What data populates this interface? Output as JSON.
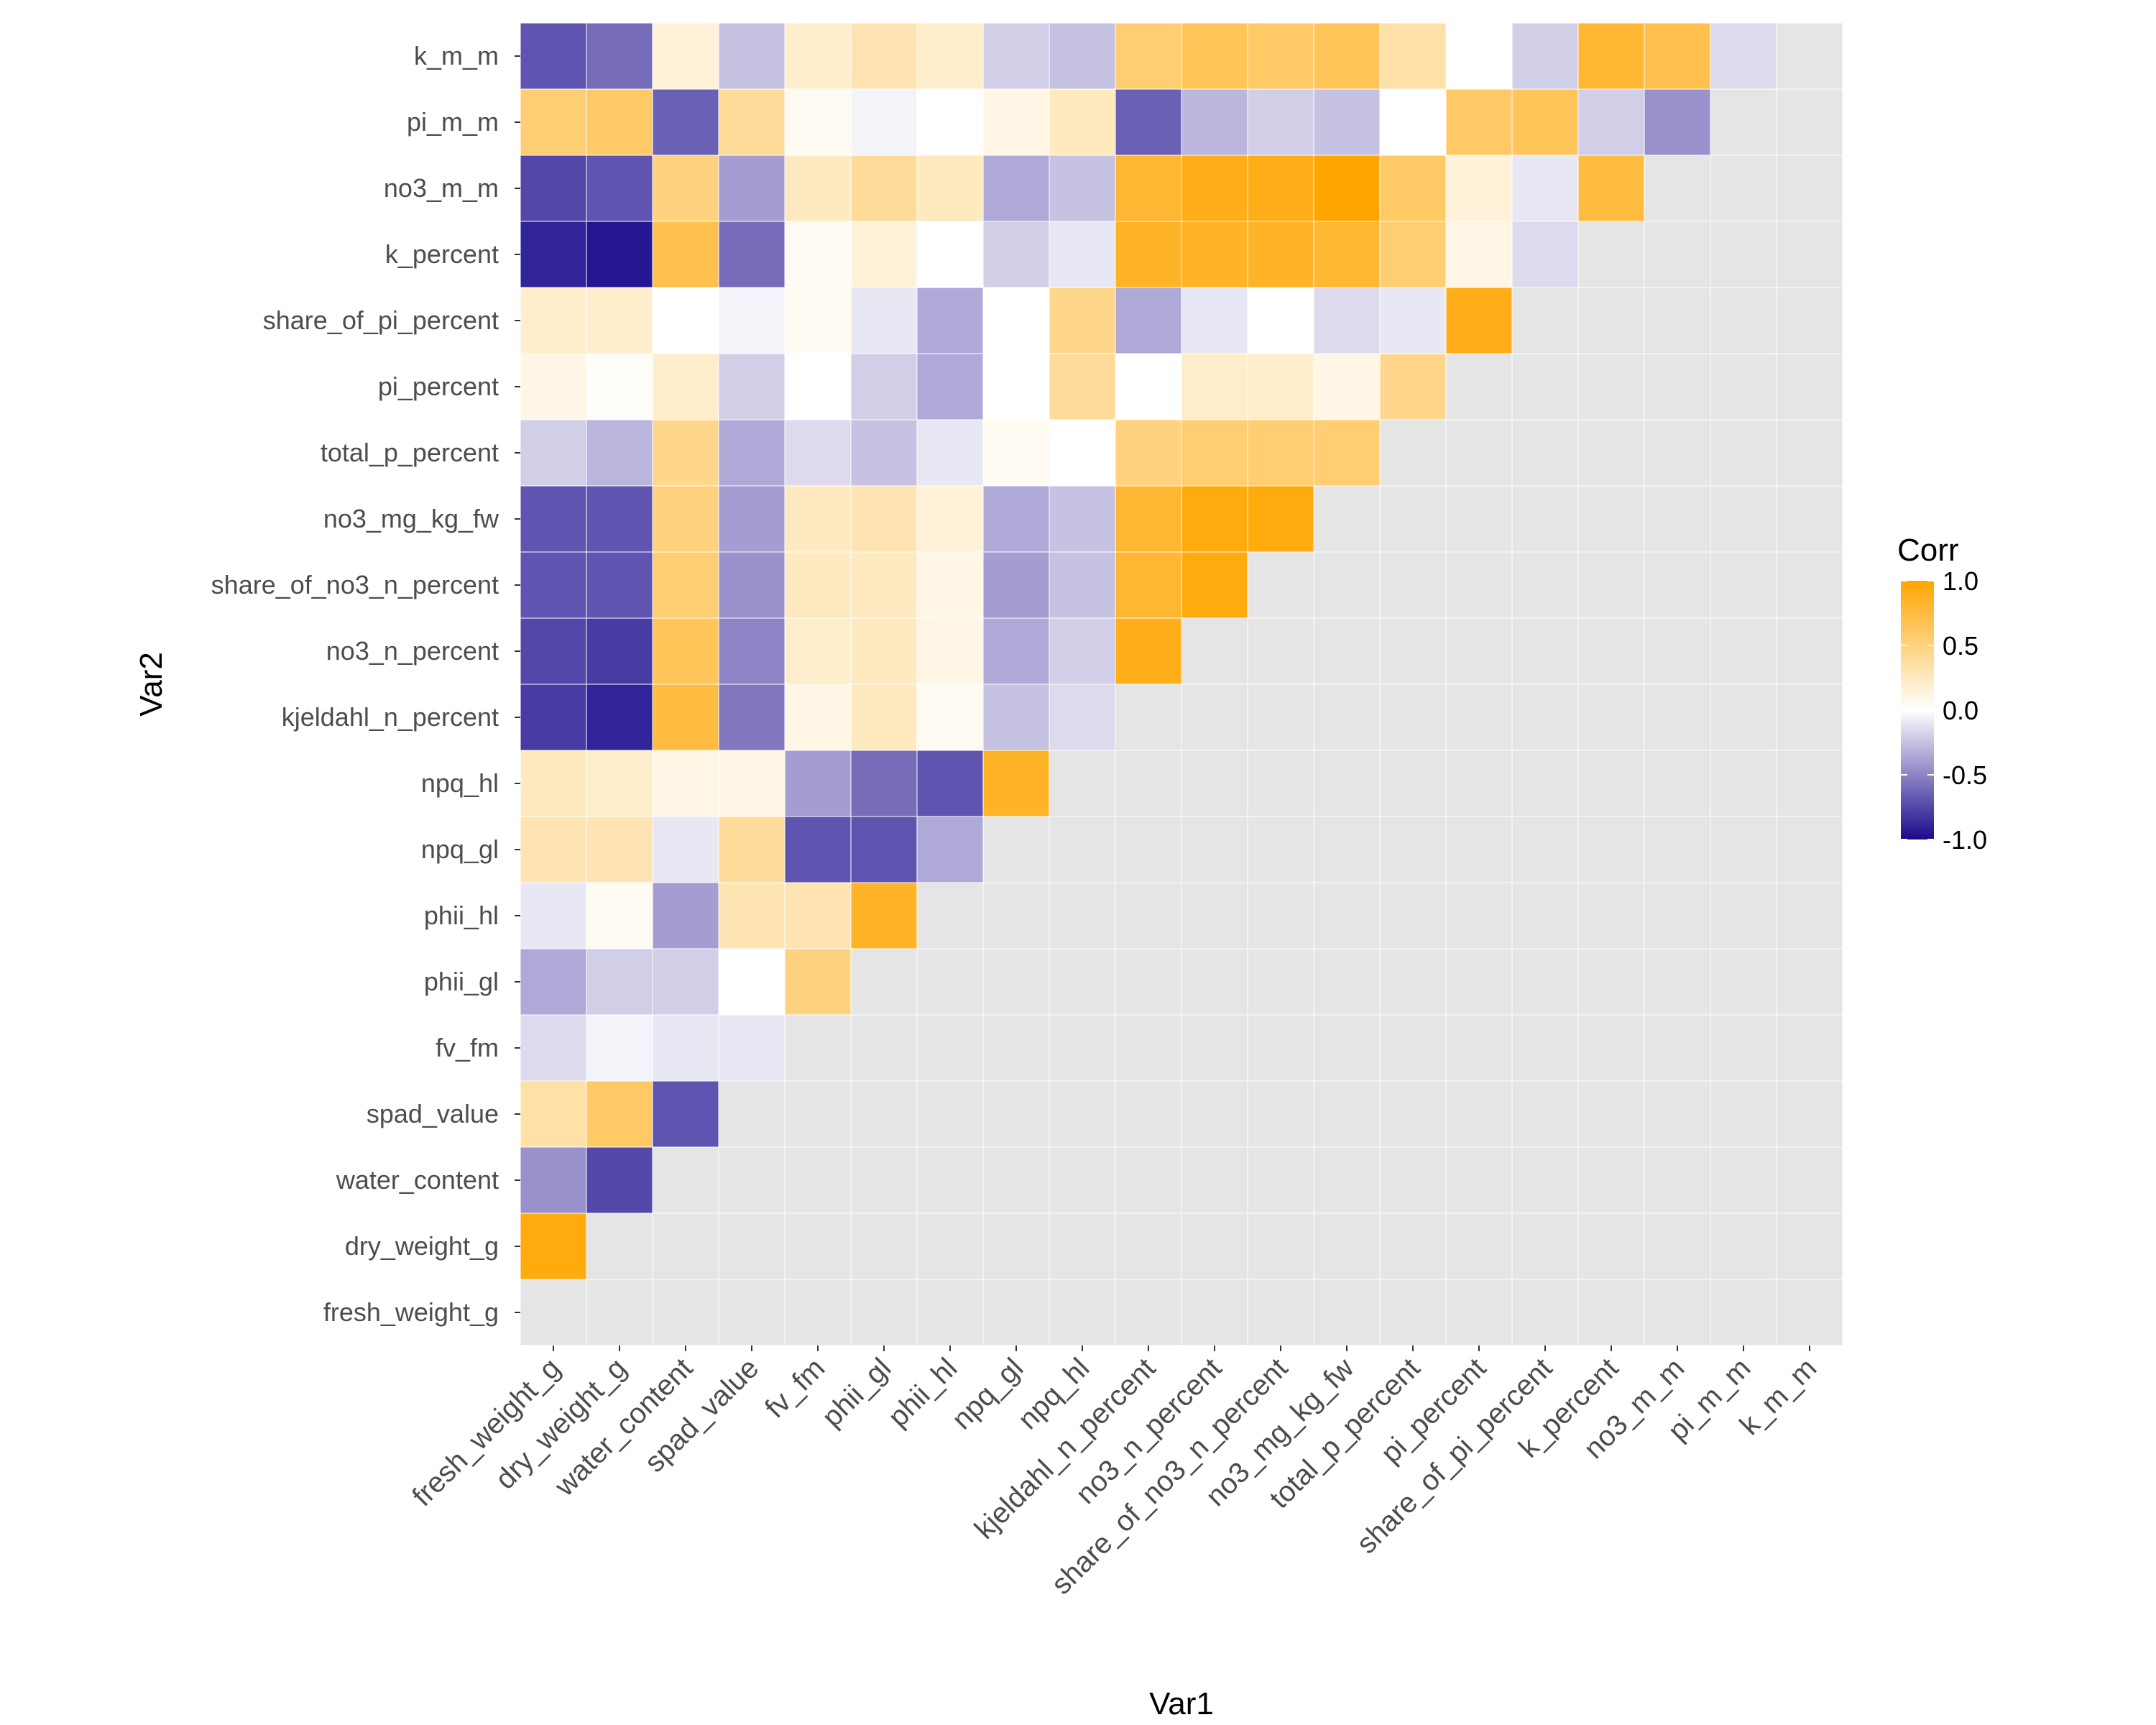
{
  "chart_data": {
    "type": "heatmap",
    "title": "",
    "xlabel": "Var1",
    "ylabel": "Var2",
    "variables": [
      "fresh_weight_g",
      "dry_weight_g",
      "water_content",
      "spad_value",
      "fv_fm",
      "phii_gl",
      "phii_hl",
      "npq_gl",
      "npq_hl",
      "kjeldahl_n_percent",
      "no3_n_percent",
      "share_of_no3_n_percent",
      "no3_mg_kg_fw",
      "total_p_percent",
      "pi_percent",
      "share_of_pi_percent",
      "k_percent",
      "no3_m_m",
      "pi_m_m",
      "k_m_m"
    ],
    "values": [
      [
        null,
        null,
        null,
        null,
        null,
        null,
        null,
        null,
        null,
        null,
        null,
        null,
        null,
        null,
        null,
        null,
        null,
        null,
        null,
        null
      ],
      [
        0.95,
        null,
        null,
        null,
        null,
        null,
        null,
        null,
        null,
        null,
        null,
        null,
        null,
        null,
        null,
        null,
        null,
        null,
        null,
        null
      ],
      [
        -0.45,
        -0.75,
        null,
        null,
        null,
        null,
        null,
        null,
        null,
        null,
        null,
        null,
        null,
        null,
        null,
        null,
        null,
        null,
        null,
        null
      ],
      [
        0.35,
        0.6,
        -0.7,
        null,
        null,
        null,
        null,
        null,
        null,
        null,
        null,
        null,
        null,
        null,
        null,
        null,
        null,
        null,
        null,
        null
      ],
      [
        -0.15,
        -0.05,
        -0.1,
        -0.1,
        null,
        null,
        null,
        null,
        null,
        null,
        null,
        null,
        null,
        null,
        null,
        null,
        null,
        null,
        null,
        null
      ],
      [
        -0.35,
        -0.2,
        -0.2,
        0.0,
        0.5,
        null,
        null,
        null,
        null,
        null,
        null,
        null,
        null,
        null,
        null,
        null,
        null,
        null,
        null,
        null
      ],
      [
        -0.1,
        0.05,
        -0.4,
        0.3,
        0.3,
        0.85,
        null,
        null,
        null,
        null,
        null,
        null,
        null,
        null,
        null,
        null,
        null,
        null,
        null,
        null
      ],
      [
        0.3,
        0.3,
        -0.1,
        0.4,
        -0.7,
        -0.7,
        -0.35,
        null,
        null,
        null,
        null,
        null,
        null,
        null,
        null,
        null,
        null,
        null,
        null,
        null
      ],
      [
        0.25,
        0.2,
        0.1,
        0.1,
        -0.4,
        -0.6,
        -0.7,
        0.85,
        null,
        null,
        null,
        null,
        null,
        null,
        null,
        null,
        null,
        null,
        null,
        null
      ],
      [
        -0.8,
        -0.9,
        0.75,
        -0.55,
        0.1,
        0.25,
        0.05,
        -0.25,
        -0.15,
        null,
        null,
        null,
        null,
        null,
        null,
        null,
        null,
        null,
        null,
        null
      ],
      [
        -0.75,
        -0.8,
        0.65,
        -0.5,
        0.2,
        0.25,
        0.1,
        -0.35,
        -0.2,
        0.9,
        null,
        null,
        null,
        null,
        null,
        null,
        null,
        null,
        null,
        null
      ],
      [
        -0.7,
        -0.7,
        0.55,
        -0.45,
        0.25,
        0.25,
        0.1,
        -0.4,
        -0.25,
        0.8,
        0.95,
        null,
        null,
        null,
        null,
        null,
        null,
        null,
        null,
        null
      ],
      [
        -0.7,
        -0.7,
        0.5,
        -0.4,
        0.25,
        0.3,
        0.15,
        -0.35,
        -0.25,
        0.8,
        0.95,
        0.95,
        null,
        null,
        null,
        null,
        null,
        null,
        null,
        null
      ],
      [
        -0.2,
        -0.3,
        0.45,
        -0.35,
        -0.15,
        -0.25,
        -0.1,
        0.05,
        0.0,
        0.5,
        0.55,
        0.55,
        0.55,
        null,
        null,
        null,
        null,
        null,
        null,
        null
      ],
      [
        0.1,
        0.02,
        0.2,
        -0.2,
        0.0,
        -0.2,
        -0.35,
        0.0,
        0.4,
        0.0,
        0.2,
        0.2,
        0.1,
        0.45,
        null,
        null,
        null,
        null,
        null,
        null
      ],
      [
        0.2,
        0.2,
        0.0,
        -0.05,
        0.05,
        -0.1,
        -0.35,
        0.0,
        0.45,
        -0.35,
        -0.1,
        0.0,
        -0.15,
        -0.1,
        0.9,
        null,
        null,
        null,
        null,
        null
      ],
      [
        -0.9,
        -0.95,
        0.7,
        -0.6,
        0.05,
        0.15,
        0.0,
        -0.2,
        -0.1,
        0.85,
        0.85,
        0.85,
        0.8,
        0.55,
        0.1,
        -0.15,
        null,
        null,
        null,
        null
      ],
      [
        -0.75,
        -0.7,
        0.5,
        -0.4,
        0.25,
        0.4,
        0.25,
        -0.35,
        -0.25,
        0.8,
        0.9,
        0.9,
        1.0,
        0.6,
        0.15,
        -0.1,
        0.75,
        null,
        null,
        null
      ],
      [
        0.55,
        0.6,
        -0.65,
        0.4,
        0.05,
        -0.05,
        0.0,
        0.1,
        0.25,
        -0.65,
        -0.3,
        -0.2,
        -0.25,
        0.0,
        0.6,
        0.65,
        -0.2,
        -0.45,
        null,
        null
      ],
      [
        -0.7,
        -0.6,
        0.15,
        -0.25,
        0.2,
        0.3,
        0.2,
        -0.2,
        -0.25,
        0.55,
        0.65,
        0.6,
        0.65,
        0.35,
        0.0,
        -0.2,
        0.8,
        0.7,
        -0.15,
        null
      ]
    ],
    "legend": {
      "title": "Corr",
      "ticks": [
        "1.0",
        "0.5",
        "0.0",
        "-0.5",
        "-1.0"
      ],
      "range": [
        -1,
        1
      ],
      "placement": "right"
    },
    "colors": {
      "low": "#1a0a8c",
      "mid": "#ffffff",
      "high": "#ffa500",
      "na": "#e5e5e5"
    }
  }
}
